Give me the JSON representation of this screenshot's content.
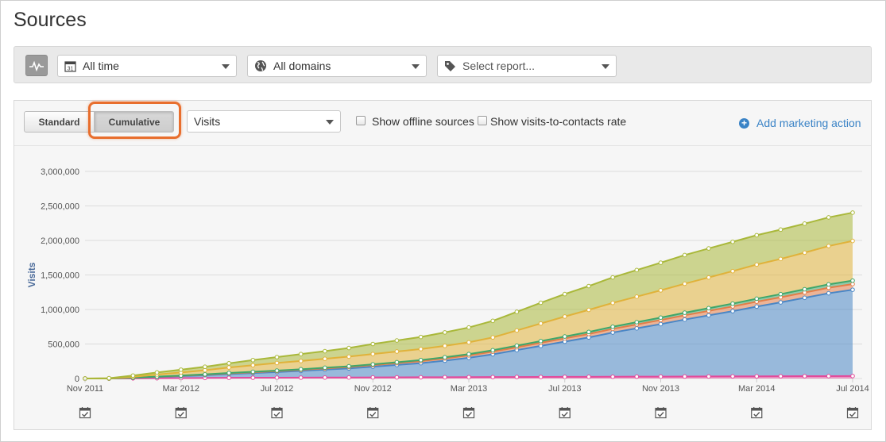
{
  "page": {
    "title": "Sources"
  },
  "filters": {
    "date_range": "All time",
    "domains": "All domains",
    "report_placeholder": "Select report..."
  },
  "toolbar": {
    "standard_label": "Standard",
    "cumulative_label": "Cumulative",
    "metric": "Visits",
    "show_offline_label": "Show offline sources",
    "show_offline_checked": false,
    "show_rate_label": "Show visits-to-contacts rate",
    "show_rate_checked": false,
    "add_action_label": "Add marketing action"
  },
  "chart_data": {
    "type": "area",
    "stacked": true,
    "title": "",
    "xlabel": "",
    "ylabel": "Visits",
    "ylim": [
      0,
      3000000
    ],
    "yticks": [
      0,
      500000,
      1000000,
      1500000,
      2000000,
      2500000,
      3000000
    ],
    "ytick_labels": [
      "0",
      "500,000",
      "1,000,000",
      "1,500,000",
      "2,000,000",
      "2,500,000",
      "3,000,000"
    ],
    "xtick_labels": [
      "Nov 2011",
      "Mar 2012",
      "Jul 2012",
      "Nov 2012",
      "Mar 2013",
      "Jul 2013",
      "Nov 2013",
      "Mar 2014",
      "Jul 2014"
    ],
    "grid": true,
    "legend": "none",
    "x": [
      "Nov 2011",
      "Dec 2011",
      "Jan 2012",
      "Feb 2012",
      "Mar 2012",
      "Apr 2012",
      "May 2012",
      "Jun 2012",
      "Jul 2012",
      "Aug 2012",
      "Sep 2012",
      "Oct 2012",
      "Nov 2012",
      "Dec 2012",
      "Jan 2013",
      "Feb 2013",
      "Mar 2013",
      "Apr 2013",
      "May 2013",
      "Jun 2013",
      "Jul 2013",
      "Aug 2013",
      "Sep 2013",
      "Oct 2013",
      "Nov 2013",
      "Dec 2013",
      "Jan 2014",
      "Feb 2014",
      "Mar 2014",
      "Apr 2014",
      "May 2014",
      "Jun 2014",
      "Jul 2014"
    ],
    "series": [
      {
        "color": "#e34a9b",
        "values": [
          0,
          0,
          2000,
          4000,
          6000,
          8000,
          10000,
          11000,
          12000,
          13000,
          14000,
          15000,
          16000,
          17000,
          18000,
          19000,
          20000,
          21000,
          22000,
          23000,
          24000,
          25000,
          26000,
          27000,
          28000,
          29000,
          30000,
          31000,
          32000,
          33000,
          34000,
          35000,
          36000
        ]
      },
      {
        "color": "#4a86c5",
        "values": [
          0,
          0,
          8000,
          18000,
          28000,
          40000,
          55000,
          68000,
          82000,
          97000,
          115000,
          132000,
          155000,
          180000,
          205000,
          240000,
          280000,
          330000,
          390000,
          450000,
          510000,
          570000,
          640000,
          700000,
          760000,
          825000,
          885000,
          945000,
          1010000,
          1070000,
          1135000,
          1200000,
          1250000
        ]
      },
      {
        "color": "#e37d48",
        "values": [
          0,
          0,
          2000,
          4000,
          6000,
          8000,
          10000,
          12000,
          14000,
          16000,
          18000,
          20000,
          23000,
          26000,
          29000,
          32000,
          35000,
          38000,
          41000,
          44000,
          47000,
          50000,
          53000,
          56000,
          59000,
          62000,
          65000,
          68000,
          71000,
          74000,
          77000,
          80000,
          82000
        ]
      },
      {
        "color": "#3fa66a",
        "values": [
          0,
          0,
          1000,
          2000,
          3000,
          4000,
          5000,
          6000,
          7000,
          8000,
          9000,
          10000,
          11000,
          13000,
          15000,
          17000,
          19000,
          21000,
          23000,
          25000,
          27000,
          29000,
          31000,
          33000,
          35000,
          37000,
          39000,
          41000,
          43000,
          45000,
          47000,
          49000,
          50000
        ]
      },
      {
        "color": "#e0b23a",
        "values": [
          0,
          2000,
          12000,
          30000,
          45000,
          60000,
          80000,
          95000,
          110000,
          120000,
          130000,
          140000,
          150000,
          155000,
          160000,
          165000,
          170000,
          185000,
          220000,
          255000,
          290000,
          320000,
          345000,
          370000,
          395000,
          420000,
          445000,
          470000,
          495000,
          510000,
          530000,
          555000,
          575000
        ]
      },
      {
        "color": "#a9b83a",
        "values": [
          0,
          3000,
          18000,
          30000,
          40000,
          50000,
          60000,
          75000,
          85000,
          100000,
          110000,
          125000,
          145000,
          160000,
          175000,
          195000,
          215000,
          240000,
          270000,
          300000,
          325000,
          345000,
          370000,
          385000,
          400000,
          415000,
          420000,
          425000,
          425000,
          425000,
          420000,
          415000,
          410000
        ]
      }
    ],
    "marketing_action_markers": [
      "Nov 2011",
      "Mar 2012",
      "Jul 2012",
      "Nov 2012",
      "Mar 2013",
      "Jul 2013",
      "Nov 2013",
      "Mar 2014",
      "Jul 2014"
    ]
  }
}
